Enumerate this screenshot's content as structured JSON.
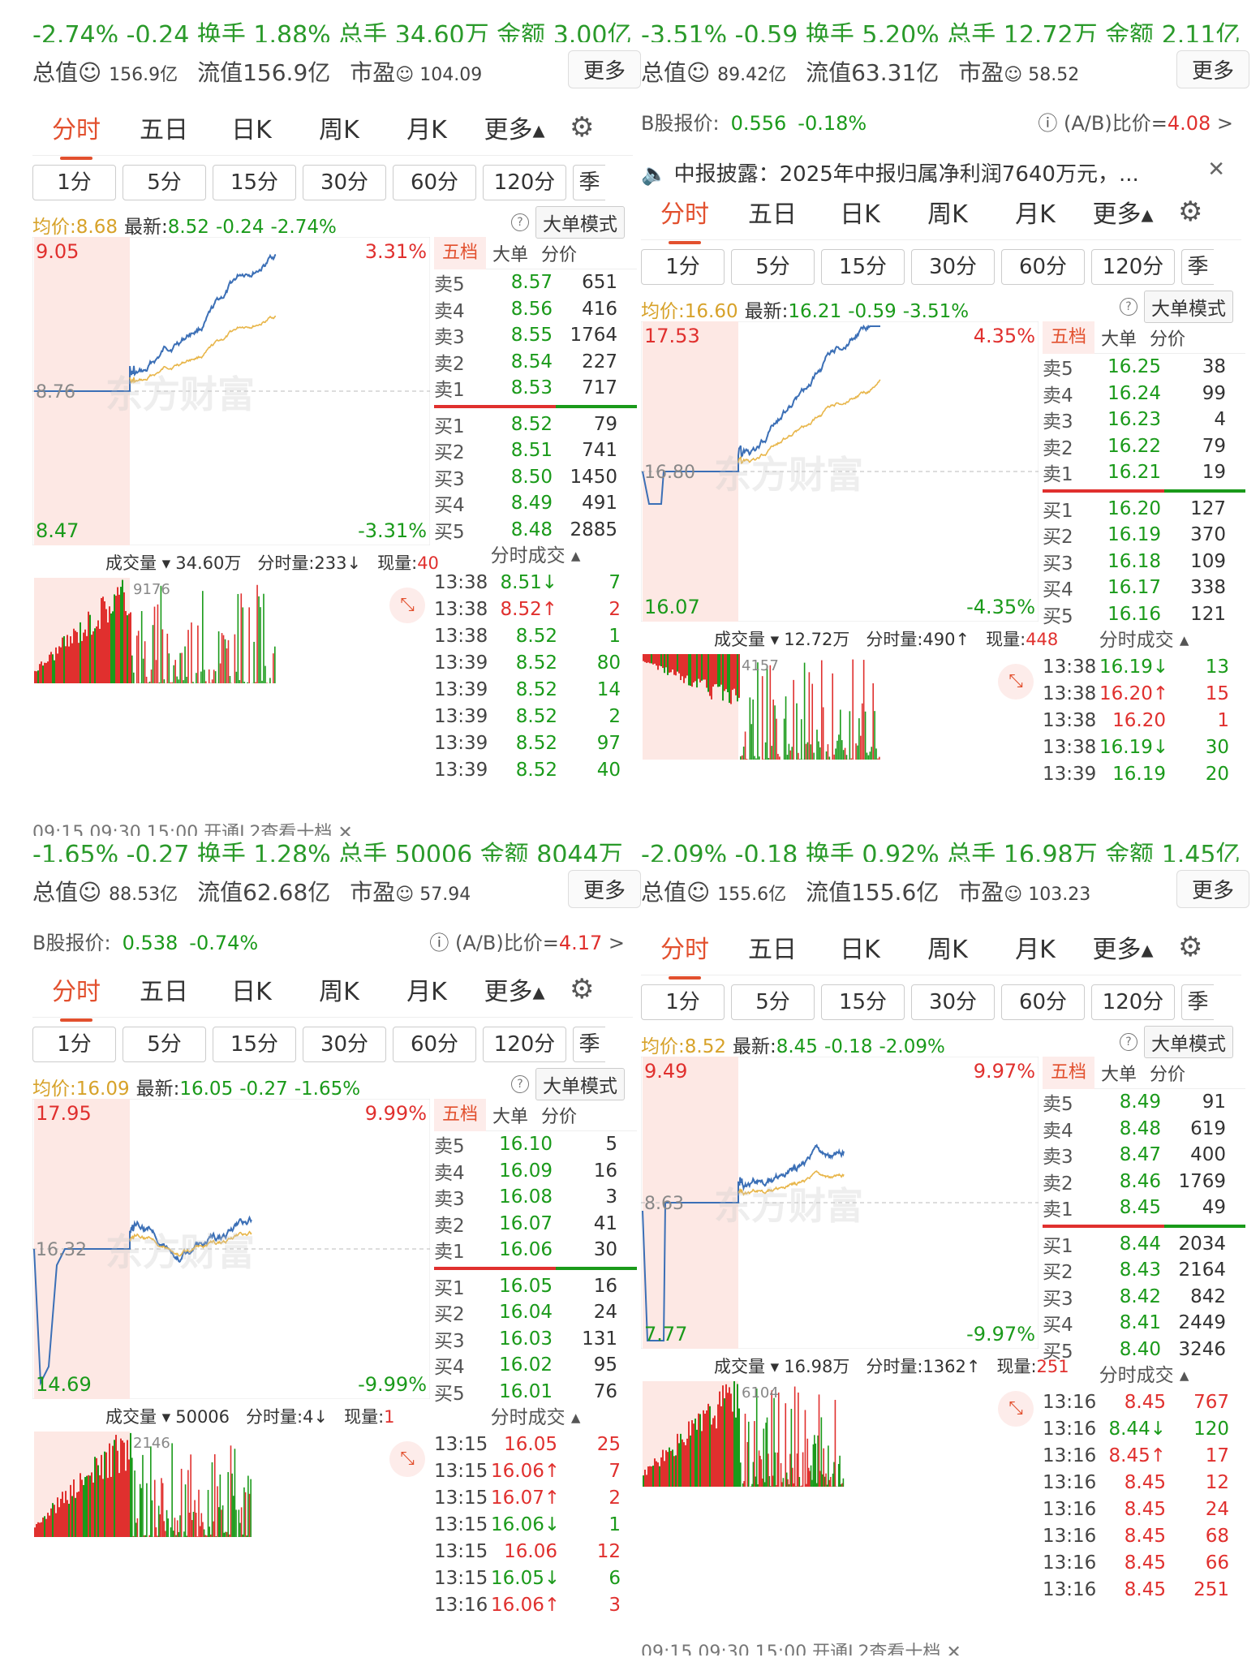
{
  "tabs": [
    "分时",
    "五日",
    "日K",
    "周K",
    "月K",
    "更多▴"
  ],
  "periods": [
    "1分",
    "5分",
    "15分",
    "30分",
    "60分",
    "120分",
    "季"
  ],
  "more_label": "更多",
  "big_mode": "大单模式",
  "ob_header": [
    "五档",
    "大单",
    "分价"
  ],
  "trade_header": "分时成交 ▴",
  "watermark": "东方财富",
  "vol_labels": {
    "vol": "成交量 ▾",
    "fen": "分时量:",
    "now": "现量:"
  },
  "info_labels": {
    "total": "总值",
    "float": "流值",
    "pe": "市盈"
  },
  "avg_labels": {
    "avg": "均价:",
    "last": "最新:"
  },
  "panels": [
    {
      "top_cut": "-2.74%  -0.24  换手 1.88%  总手 34.60万  金额 3.00亿",
      "total": "156.9亿",
      "float": "156.9亿",
      "pe": "104.09",
      "avg": "8.68",
      "last": "8.52",
      "chg": "-0.24",
      "pct": "-2.74%",
      "hi": "9.05",
      "lo": "8.47",
      "hi_pct": "3.31%",
      "lo_pct": "-3.31%",
      "mid": "8.76",
      "vol_total": "34.60万",
      "fen": "233↓",
      "now": "40",
      "vol_max": "9176",
      "asks": [
        [
          "卖5",
          "8.57",
          "651"
        ],
        [
          "卖4",
          "8.56",
          "416"
        ],
        [
          "卖3",
          "8.55",
          "1764"
        ],
        [
          "卖2",
          "8.54",
          "227"
        ],
        [
          "卖1",
          "8.53",
          "717"
        ]
      ],
      "bids": [
        [
          "买1",
          "8.52",
          "79"
        ],
        [
          "买2",
          "8.51",
          "741"
        ],
        [
          "买3",
          "8.50",
          "1450"
        ],
        [
          "买4",
          "8.49",
          "491"
        ],
        [
          "买5",
          "8.48",
          "2885"
        ]
      ],
      "trades": [
        [
          "13:38",
          "8.51↓",
          "7",
          "g"
        ],
        [
          "13:38",
          "8.52↑",
          "2",
          "r"
        ],
        [
          "13:38",
          "8.52",
          "1",
          "g"
        ],
        [
          "13:39",
          "8.52",
          "80",
          "g"
        ],
        [
          "13:39",
          "8.52",
          "14",
          "g"
        ],
        [
          "13:39",
          "8.52",
          "2",
          "g"
        ],
        [
          "13:39",
          "8.52",
          "97",
          "g"
        ],
        [
          "13:39",
          "8.52",
          "40",
          "g"
        ]
      ],
      "bottom": "09:15      09:30                                15:00   开通L2查看十档 ✕"
    },
    {
      "top_cut": "-3.51%  -0.59  换手 5.20%  总手 12.72万  金额 2.11亿",
      "total": "89.42亿",
      "float": "63.31亿",
      "pe": "58.52",
      "bq": "B股报价:",
      "bq_price": "0.556",
      "bq_pct": "-0.18%",
      "ab": "(A/B)比价=",
      "ab_val": "4.08",
      "notice": "中报披露：2025年中报归属净利润7640万元，...",
      "avg": "16.60",
      "last": "16.21",
      "chg": "-0.59",
      "pct": "-3.51%",
      "hi": "17.53",
      "lo": "16.07",
      "hi_pct": "4.35%",
      "lo_pct": "-4.35%",
      "mid": "16.80",
      "vol_total": "12.72万",
      "fen": "490↑",
      "now": "448",
      "vol_max": "4157",
      "asks": [
        [
          "卖5",
          "16.25",
          "38"
        ],
        [
          "卖4",
          "16.24",
          "99"
        ],
        [
          "卖3",
          "16.23",
          "4"
        ],
        [
          "卖2",
          "16.22",
          "79"
        ],
        [
          "卖1",
          "16.21",
          "19"
        ]
      ],
      "bids": [
        [
          "买1",
          "16.20",
          "127"
        ],
        [
          "买2",
          "16.19",
          "370"
        ],
        [
          "买3",
          "16.18",
          "109"
        ],
        [
          "买4",
          "16.17",
          "338"
        ],
        [
          "买5",
          "16.16",
          "121"
        ]
      ],
      "trades": [
        [
          "13:38",
          "16.19↓",
          "13",
          "g"
        ],
        [
          "13:38",
          "16.20↑",
          "15",
          "r"
        ],
        [
          "13:38",
          "16.20",
          "1",
          "r"
        ],
        [
          "13:38",
          "16.19↓",
          "30",
          "g"
        ],
        [
          "13:39",
          "16.19",
          "20",
          "g"
        ]
      ]
    },
    {
      "top_cut": "-1.65%  -0.27  换手 1.28%  总手 50006  金额 8044万",
      "total": "88.53亿",
      "float": "62.68亿",
      "pe": "57.94",
      "bq": "B股报价:",
      "bq_price": "0.538",
      "bq_pct": "-0.74%",
      "ab": "(A/B)比价=",
      "ab_val": "4.17",
      "avg": "16.09",
      "last": "16.05",
      "chg": "-0.27",
      "pct": "-1.65%",
      "hi": "17.95",
      "lo": "14.69",
      "hi_pct": "9.99%",
      "lo_pct": "-9.99%",
      "mid": "16.32",
      "vol_total": "50006",
      "fen": "4↓",
      "now": "1",
      "vol_max": "2146",
      "asks": [
        [
          "卖5",
          "16.10",
          "5"
        ],
        [
          "卖4",
          "16.09",
          "16"
        ],
        [
          "卖3",
          "16.08",
          "3"
        ],
        [
          "卖2",
          "16.07",
          "41"
        ],
        [
          "卖1",
          "16.06",
          "30"
        ]
      ],
      "bids": [
        [
          "买1",
          "16.05",
          "16"
        ],
        [
          "买2",
          "16.04",
          "24"
        ],
        [
          "买3",
          "16.03",
          "131"
        ],
        [
          "买4",
          "16.02",
          "95"
        ],
        [
          "买5",
          "16.01",
          "76"
        ]
      ],
      "trades": [
        [
          "13:15",
          "16.05",
          "25",
          "r"
        ],
        [
          "13:15",
          "16.06↑",
          "7",
          "r"
        ],
        [
          "13:15",
          "16.07↑",
          "2",
          "r"
        ],
        [
          "13:15",
          "16.06↓",
          "1",
          "g"
        ],
        [
          "13:15",
          "16.06",
          "12",
          "r"
        ],
        [
          "13:15",
          "16.05↓",
          "6",
          "g"
        ],
        [
          "13:16",
          "16.06↑",
          "3",
          "r"
        ]
      ]
    },
    {
      "top_cut": "-2.09%  -0.18  换手 0.92%  总手 16.98万  金额 1.45亿",
      "total": "155.6亿",
      "float": "155.6亿",
      "pe": "103.23",
      "avg": "8.52",
      "last": "8.45",
      "chg": "-0.18",
      "pct": "-2.09%",
      "hi": "9.49",
      "lo": "7.77",
      "hi_pct": "9.97%",
      "lo_pct": "-9.97%",
      "mid": "8.63",
      "vol_total": "16.98万",
      "fen": "1362↑",
      "now": "251",
      "vol_max": "6104",
      "asks": [
        [
          "卖5",
          "8.49",
          "91"
        ],
        [
          "卖4",
          "8.48",
          "619"
        ],
        [
          "卖3",
          "8.47",
          "400"
        ],
        [
          "卖2",
          "8.46",
          "1769"
        ],
        [
          "卖1",
          "8.45",
          "49"
        ]
      ],
      "bids": [
        [
          "买1",
          "8.44",
          "2034"
        ],
        [
          "买2",
          "8.43",
          "2164"
        ],
        [
          "买3",
          "8.42",
          "842"
        ],
        [
          "买4",
          "8.41",
          "2449"
        ],
        [
          "买5",
          "8.40",
          "3246"
        ]
      ],
      "trades": [
        [
          "13:16",
          "8.45",
          "767",
          "r"
        ],
        [
          "13:16",
          "8.44↓",
          "120",
          "g"
        ],
        [
          "13:16",
          "8.45↑",
          "17",
          "r"
        ],
        [
          "13:16",
          "8.45",
          "12",
          "r"
        ],
        [
          "13:16",
          "8.45",
          "24",
          "r"
        ],
        [
          "13:16",
          "8.45",
          "68",
          "r"
        ],
        [
          "13:16",
          "8.45",
          "66",
          "r"
        ],
        [
          "13:16",
          "8.45",
          "251",
          "r"
        ]
      ],
      "bottom": "09:15      09:30                                15:00   开通L2查看十档 ✕"
    }
  ]
}
